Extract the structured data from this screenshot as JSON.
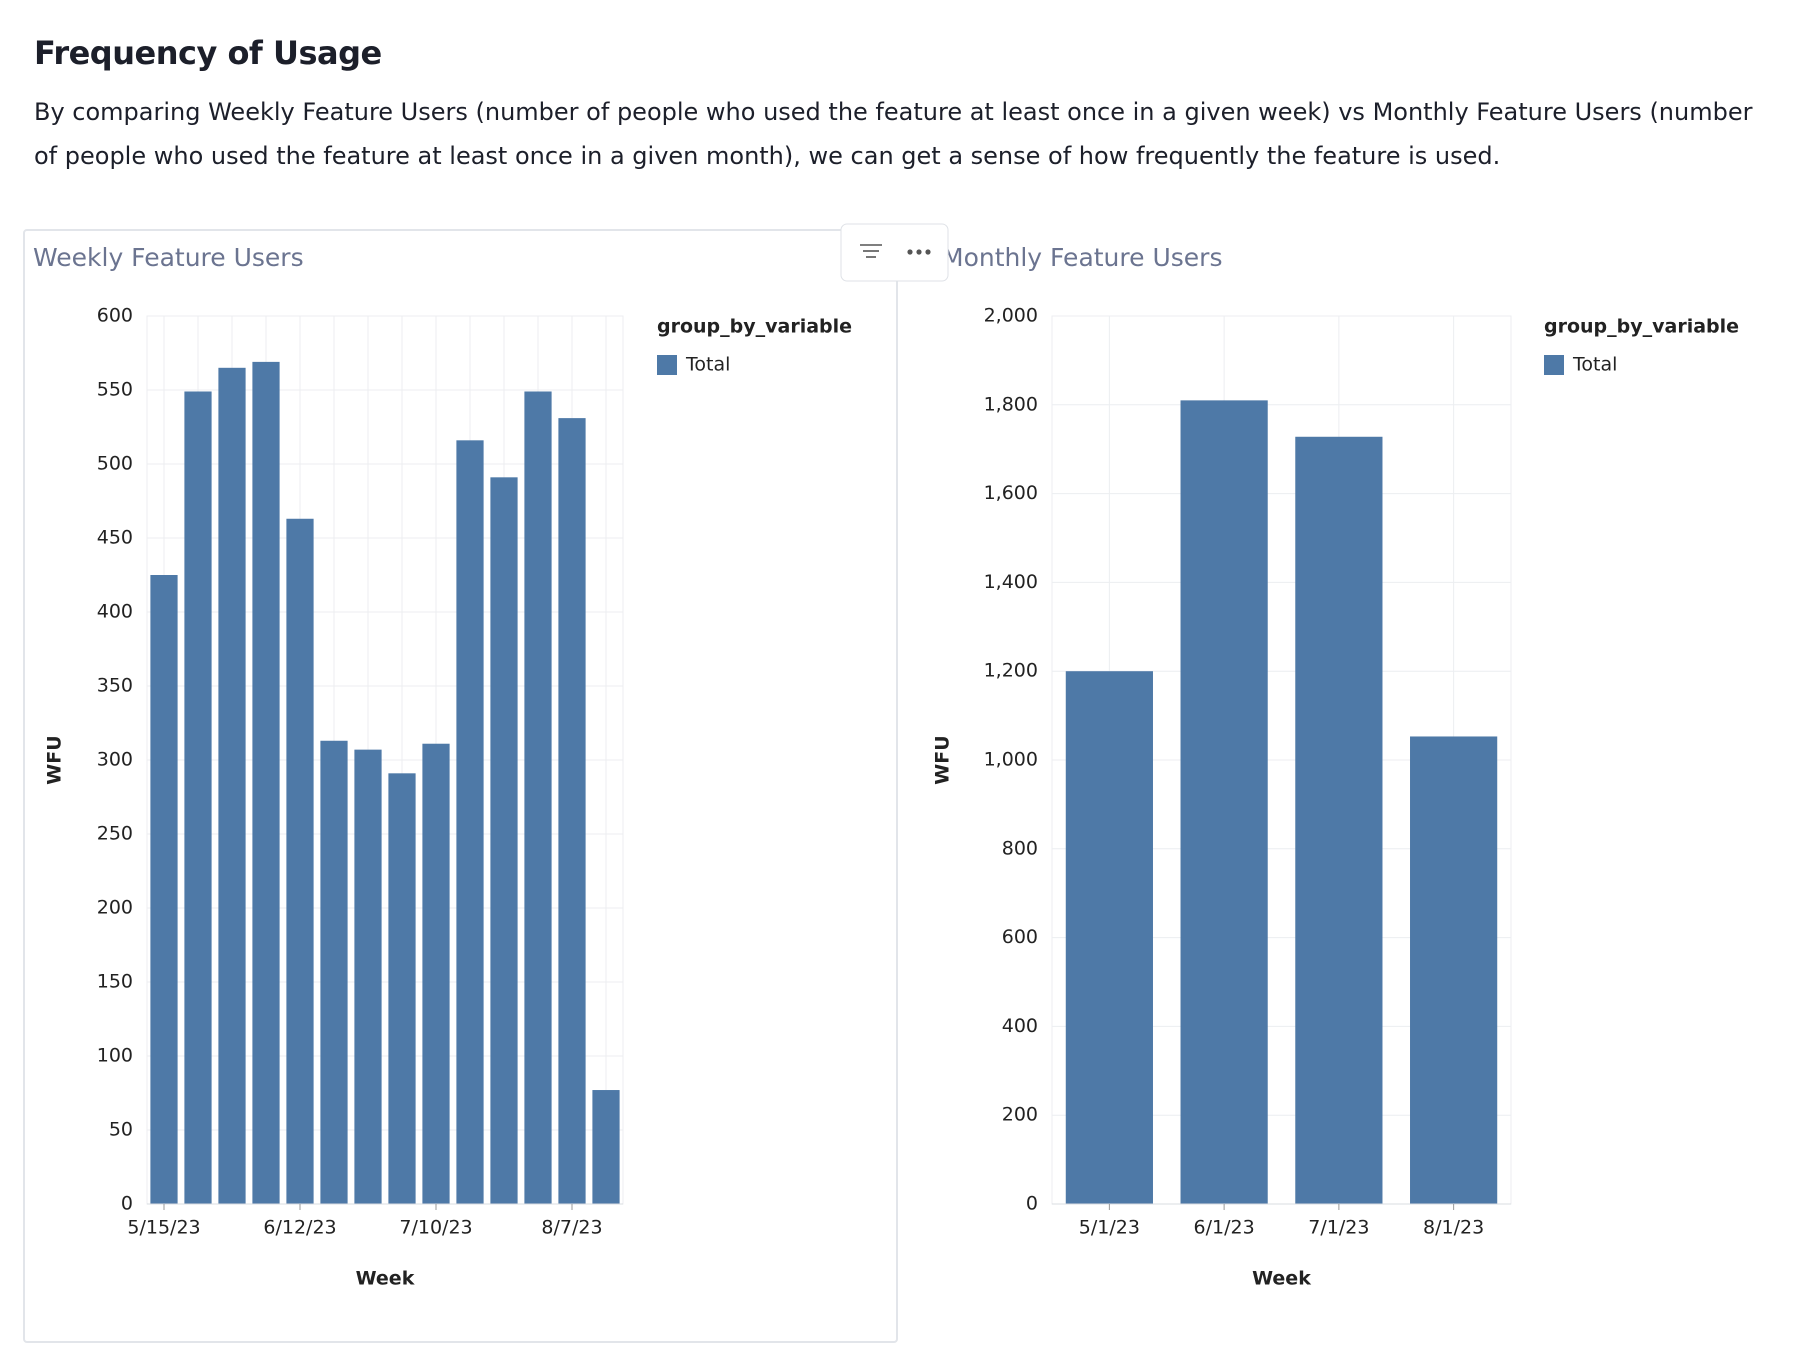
{
  "header": {
    "title": "Frequency of Usage",
    "description": "By comparing Weekly Feature Users (number of people who used the feature at least once in a given week) vs Monthly Feature Users (number of people who used the feature at least once in a given month), we can get a sense of how frequently the feature is used."
  },
  "chart_data": [
    {
      "type": "bar",
      "title": "Weekly Feature Users",
      "x_label": "Week",
      "y_label": "WFU",
      "categories": [
        "5/15/23",
        null,
        null,
        null,
        "6/12/23",
        null,
        null,
        null,
        "7/10/23",
        null,
        null,
        null,
        "8/7/23",
        null
      ],
      "series": [
        {
          "name": "Total",
          "color": "#4e79a7",
          "values": [
            425,
            549,
            565,
            569,
            463,
            313,
            307,
            291,
            311,
            516,
            491,
            549,
            531,
            77
          ]
        }
      ],
      "legend_title": "group_by_variable",
      "legend": "right",
      "ylim": [
        0,
        600
      ],
      "yticks": [
        0,
        50,
        100,
        150,
        200,
        250,
        300,
        350,
        400,
        450,
        500,
        550,
        600
      ],
      "grid": true
    },
    {
      "type": "bar",
      "title": "Monthly Feature Users",
      "x_label": "Week",
      "y_label": "WFU",
      "categories": [
        "5/1/23",
        "6/1/23",
        "7/1/23",
        "8/1/23"
      ],
      "series": [
        {
          "name": "Total",
          "color": "#4e79a7",
          "values": [
            1200,
            1810,
            1728,
            1053
          ]
        }
      ],
      "legend_title": "group_by_variable",
      "legend": "right",
      "ylim": [
        0,
        2000
      ],
      "yticks": [
        0,
        200,
        400,
        600,
        800,
        {
          "value": 1000,
          "label": "1,000"
        },
        {
          "value": 1200,
          "label": "1,200"
        },
        {
          "value": 1400,
          "label": "1,400"
        },
        {
          "value": 1600,
          "label": "1,600"
        },
        {
          "value": 1800,
          "label": "1,800"
        },
        {
          "value": 2000,
          "label": "2,000"
        }
      ],
      "grid": true
    }
  ]
}
